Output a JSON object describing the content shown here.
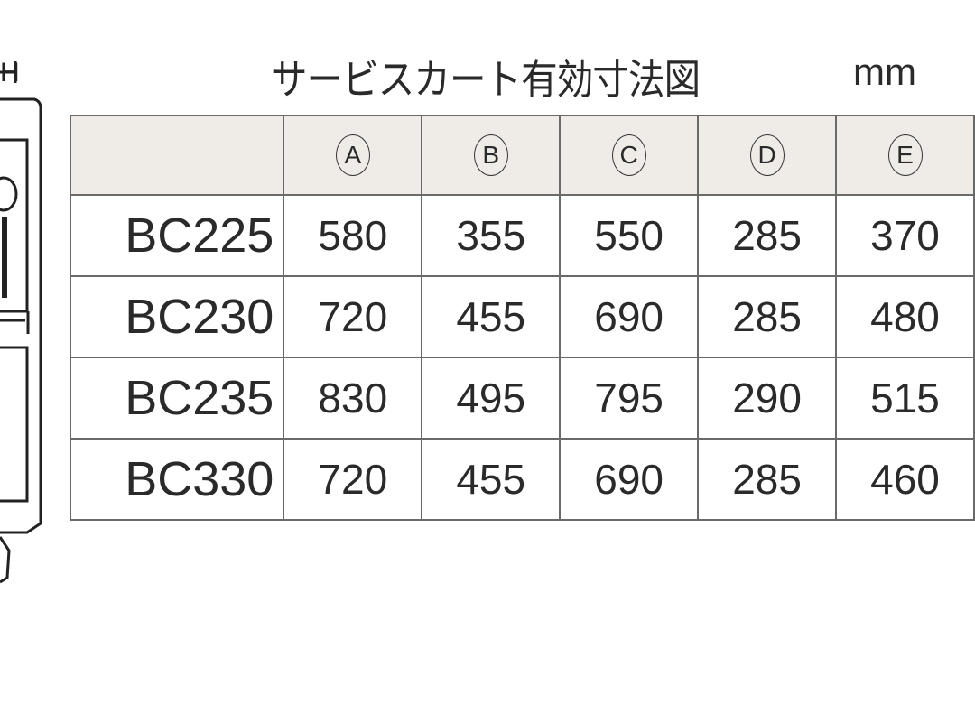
{
  "title": "サービスカート有効寸法図",
  "unit": "mm",
  "diagram_label": "H",
  "table": {
    "columns": [
      "A",
      "B",
      "C",
      "D",
      "E"
    ],
    "rows": [
      {
        "model": "BC225",
        "values": [
          "580",
          "355",
          "550",
          "285",
          "370"
        ]
      },
      {
        "model": "BC230",
        "values": [
          "720",
          "455",
          "690",
          "285",
          "480"
        ]
      },
      {
        "model": "BC235",
        "values": [
          "830",
          "495",
          "795",
          "290",
          "515"
        ]
      },
      {
        "model": "BC330",
        "values": [
          "720",
          "455",
          "690",
          "285",
          "460"
        ]
      }
    ]
  }
}
